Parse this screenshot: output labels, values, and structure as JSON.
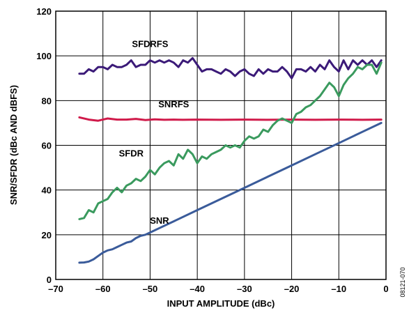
{
  "figure_id": "08121-070",
  "chart_data": {
    "type": "line",
    "xlabel": "INPUT AMPLITUDE (dBc)",
    "ylabel": "SNR/SFDR (dBc AND dBFS)",
    "xlim": [
      -70,
      0
    ],
    "ylim": [
      0,
      120
    ],
    "xticks": [
      -70,
      -60,
      -50,
      -40,
      -30,
      -20,
      -10,
      0
    ],
    "xtick_labels": [
      "–70",
      "–60",
      "–50",
      "–40",
      "–30",
      "–20",
      "–10",
      "0"
    ],
    "yticks": [
      0,
      20,
      40,
      60,
      80,
      100,
      120
    ],
    "ytick_labels": [
      "0",
      "20",
      "40",
      "60",
      "80",
      "100",
      "120"
    ],
    "grid": true,
    "legend": "none",
    "series": [
      {
        "name": "SFDRFS",
        "color": "#3b1a78",
        "label_at": [
          -50,
          104
        ],
        "x": [
          -65,
          -64,
          -63,
          -62,
          -61,
          -60,
          -59,
          -58,
          -57,
          -56,
          -55,
          -54,
          -53,
          -52,
          -51,
          -50,
          -49,
          -48,
          -47,
          -46,
          -45,
          -44,
          -43,
          -42,
          -41,
          -40,
          -39,
          -38,
          -37,
          -36,
          -35,
          -34,
          -33,
          -32,
          -31,
          -30,
          -29,
          -28,
          -27,
          -26,
          -25,
          -24,
          -23,
          -22,
          -21,
          -20,
          -19,
          -18,
          -17,
          -16,
          -15,
          -14,
          -13,
          -12,
          -11,
          -10,
          -9,
          -8,
          -7,
          -6,
          -5,
          -4,
          -3,
          -2,
          -1
        ],
        "y": [
          92,
          92,
          94,
          93,
          95,
          95,
          94,
          96,
          95,
          95,
          96,
          98,
          95,
          96,
          96,
          98,
          97,
          98,
          97,
          98,
          97,
          95,
          98,
          97,
          99,
          96,
          93,
          94,
          94,
          93,
          92,
          94,
          93,
          91,
          93,
          94,
          92,
          91,
          94,
          92,
          94,
          93,
          93,
          95,
          93,
          90,
          94,
          94,
          93,
          95,
          93,
          96,
          94,
          98,
          95,
          93,
          98,
          94,
          98,
          96,
          98,
          96,
          98,
          95,
          98
        ]
      },
      {
        "name": "SNRFS",
        "color": "#d01a4a",
        "label_at": [
          -45,
          77
        ],
        "x": [
          -65,
          -63,
          -61,
          -60,
          -59,
          -57,
          -55,
          -53,
          -51,
          -49,
          -47,
          -45,
          -43,
          -40,
          -35,
          -30,
          -25,
          -20,
          -15,
          -10,
          -5,
          -1
        ],
        "y": [
          72.5,
          71.5,
          71,
          71.5,
          72,
          71.5,
          71.5,
          71.8,
          71.3,
          71.6,
          71.4,
          71.5,
          71.4,
          71.5,
          71.4,
          71.5,
          71.4,
          71.5,
          71.4,
          71.5,
          71.4,
          71.5
        ]
      },
      {
        "name": "SFDR",
        "color": "#3a9a5e",
        "label_at": [
          -54,
          55
        ],
        "x": [
          -65,
          -64,
          -63,
          -62,
          -61,
          -60,
          -59,
          -58,
          -57,
          -56,
          -55,
          -54,
          -53,
          -52,
          -51,
          -50,
          -49,
          -48,
          -47,
          -46,
          -45,
          -44,
          -43,
          -42,
          -41,
          -40,
          -39,
          -38,
          -37,
          -36,
          -35,
          -34,
          -33,
          -32,
          -31,
          -30,
          -29,
          -28,
          -27,
          -26,
          -25,
          -24,
          -23,
          -22,
          -21,
          -20,
          -19,
          -18,
          -17,
          -16,
          -15,
          -14,
          -13,
          -12,
          -11,
          -10,
          -9,
          -8,
          -7,
          -6,
          -5,
          -4,
          -3,
          -2,
          -1
        ],
        "y": [
          27,
          27.5,
          31,
          30,
          34,
          35,
          36,
          39,
          41,
          39,
          42,
          43,
          45,
          44,
          46,
          49,
          47,
          50,
          52,
          53,
          51,
          56,
          54,
          58,
          56,
          52,
          55,
          54,
          56,
          57,
          58,
          60,
          59,
          60,
          59,
          62,
          64,
          63,
          64,
          67,
          66,
          69,
          71,
          72,
          71,
          70,
          74,
          75,
          77,
          78,
          80,
          82,
          85,
          88,
          86,
          82,
          87,
          90,
          92,
          95,
          94,
          96,
          96,
          92,
          97
        ]
      },
      {
        "name": "SNR",
        "color": "#3a5b9a",
        "label_at": [
          -48,
          25
        ],
        "x": [
          -65,
          -64,
          -63,
          -62,
          -61,
          -60,
          -59,
          -58,
          -57,
          -56,
          -55,
          -54,
          -53,
          -52,
          -51,
          -50,
          -48,
          -45,
          -40,
          -35,
          -30,
          -25,
          -20,
          -15,
          -10,
          -5,
          -1
        ],
        "y": [
          7.5,
          7.6,
          8,
          9,
          10.5,
          12,
          13,
          13.5,
          14.5,
          15.5,
          16.5,
          17,
          18.5,
          19.5,
          20,
          21,
          23,
          26,
          31,
          36,
          41,
          46,
          51,
          56,
          61,
          66,
          70
        ]
      }
    ]
  }
}
